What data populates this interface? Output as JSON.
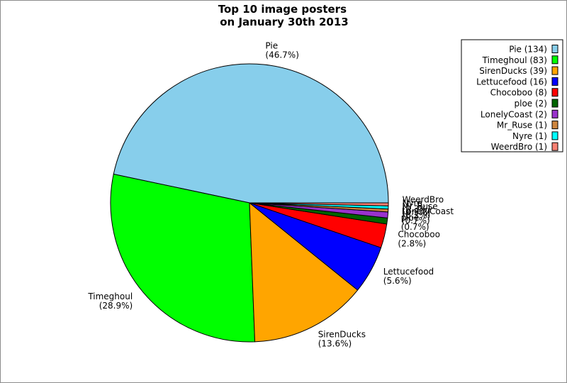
{
  "chart_data": {
    "type": "pie",
    "title": "Top 10 image posters\non January 30th 2013",
    "legend_position": "top-right",
    "slices": [
      {
        "name": "Pie",
        "value": 134,
        "color": "#87ceeb",
        "legend": "Pie (134)",
        "pct_label": "(46.7%)"
      },
      {
        "name": "Timeghoul",
        "value": 83,
        "color": "#00ff00",
        "legend": "Timeghoul (83)",
        "pct_label": "(28.9%)"
      },
      {
        "name": "SirenDucks",
        "value": 39,
        "color": "#ffa500",
        "legend": "SirenDucks (39)",
        "pct_label": "(13.6%)"
      },
      {
        "name": "Lettucefood",
        "value": 16,
        "color": "#0000ff",
        "legend": "Lettucefood (16)",
        "pct_label": "(5.6%)"
      },
      {
        "name": "Chocoboo",
        "value": 8,
        "color": "#ff0000",
        "legend": "Chocoboo (8)",
        "pct_label": "(2.8%)"
      },
      {
        "name": "ploe",
        "value": 2,
        "color": "#006400",
        "legend": "ploe (2)",
        "pct_label": "(0.7%)"
      },
      {
        "name": "LonelyCoast",
        "value": 2,
        "color": "#9932cc",
        "legend": "LonelyCoast (2)",
        "pct_label": "(0.7%)"
      },
      {
        "name": "Mr_Ruse",
        "value": 1,
        "color": "#cd853f",
        "legend": "Mr_Ruse (1)",
        "pct_label": "(0.3%)"
      },
      {
        "name": "Nyre",
        "value": 1,
        "color": "#00ffff",
        "legend": "Nyre (1)",
        "pct_label": "(0.3%)"
      },
      {
        "name": "WeerdBro",
        "value": 1,
        "color": "#fa8072",
        "legend": "WeerdBro (1)",
        "pct_label": "(0.3%)"
      }
    ]
  }
}
